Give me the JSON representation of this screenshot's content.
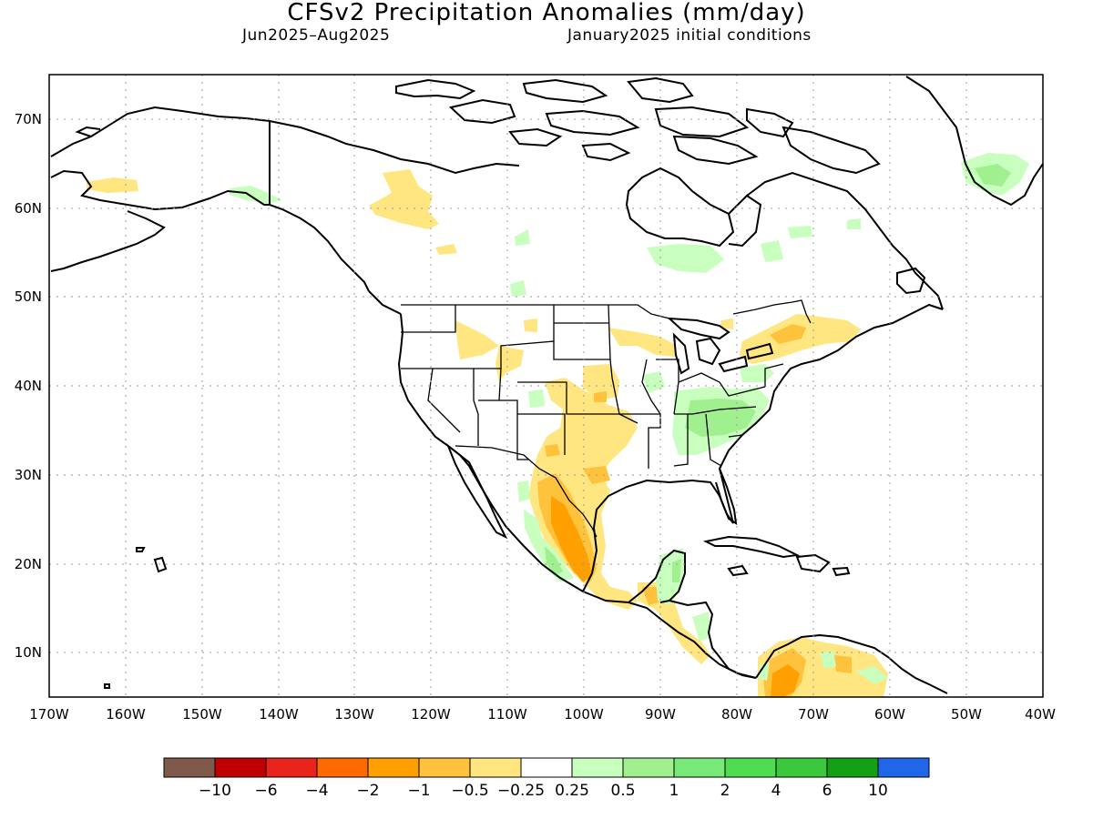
{
  "header": {
    "title": "CFSv2 Precipitation Anomalies (mm/day)",
    "period": "Jun2025–Aug2025",
    "init": "January2025 initial conditions"
  },
  "map": {
    "projection": "lat-lon",
    "lon_range": [
      -170,
      -40
    ],
    "lat_range": [
      5,
      75
    ],
    "grid": "dotted",
    "lat_ticks": [
      "70N",
      "60N",
      "50N",
      "40N",
      "30N",
      "20N",
      "10N"
    ],
    "lon_ticks": [
      "170W",
      "160W",
      "150W",
      "140W",
      "130W",
      "120W",
      "110W",
      "100W",
      "90W",
      "80W",
      "70W",
      "60W",
      "50W",
      "40W"
    ]
  },
  "colorbar": {
    "colors": [
      "#7f5a4a",
      "#c00000",
      "#e8241c",
      "#ff6a00",
      "#ffa000",
      "#ffc23c",
      "#ffe680",
      "#ffffff",
      "#c8ffbe",
      "#a0f090",
      "#78e878",
      "#50dc50",
      "#3cc83c",
      "#14a014",
      "#2066e8"
    ],
    "labels": [
      "−10",
      "−6",
      "−4",
      "−2",
      "−1",
      "−0.5",
      "−0.25",
      "0.25",
      "0.5",
      "1",
      "2",
      "4",
      "6",
      "10"
    ]
  }
}
